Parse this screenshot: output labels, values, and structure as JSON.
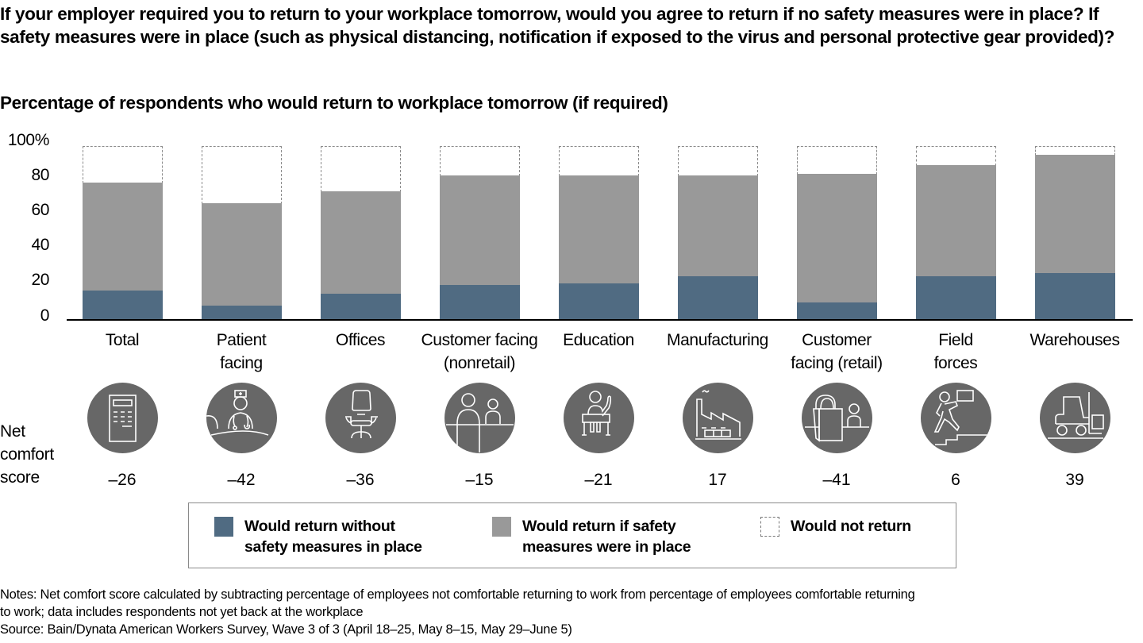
{
  "title": "If your employer required you to return to your workplace tomorrow, would you agree to return if no safety measures were in place? If safety measures were in place (such as physical distancing, notification if exposed to the virus and personal protective gear provided)?",
  "subtitle": "Percentage of respondents who would return to workplace tomorrow (if required)",
  "y_ticks": [
    "100%",
    "80",
    "60",
    "40",
    "20",
    "0"
  ],
  "net_comfort_label": [
    "Net",
    "comfort",
    "score"
  ],
  "categories": [
    {
      "line1": "Total",
      "line2": "",
      "icon": "calculator-icon",
      "score": "–26"
    },
    {
      "line1": "Patient",
      "line2": "facing",
      "icon": "nurse-patient-icon",
      "score": "–42"
    },
    {
      "line1": "Offices",
      "line2": "",
      "icon": "office-chair-icon",
      "score": "–36"
    },
    {
      "line1": "Customer facing",
      "line2": "(nonretail)",
      "icon": "service-counter-icon",
      "score": "–15"
    },
    {
      "line1": "Education",
      "line2": "",
      "icon": "student-desk-icon",
      "score": "–21"
    },
    {
      "line1": "Manufacturing",
      "line2": "",
      "icon": "factory-icon",
      "score": "17"
    },
    {
      "line1": "Customer",
      "line2": "facing (retail)",
      "icon": "shopping-bag-cashier-icon",
      "score": "–41"
    },
    {
      "line1": "Field",
      "line2": "forces",
      "icon": "worker-stairs-icon",
      "score": "6"
    },
    {
      "line1": "Warehouses",
      "line2": "",
      "icon": "forklift-icon",
      "score": "39"
    }
  ],
  "legend": {
    "without": {
      "line1": "Would return without",
      "line2": "safety measures in place",
      "color": "#506b82"
    },
    "safety": {
      "line1": "Would return if safety",
      "line2": "measures were in place",
      "color": "#999999"
    },
    "not_return": {
      "line1": "Would not return",
      "line2": "",
      "color": "#ffffff"
    }
  },
  "notes": {
    "line1": "Notes: Net comfort score calculated by subtracting percentage of employees not comfortable returning to work from percentage of employees comfortable returning",
    "line2": "to work; data includes respondents not yet back at the workplace",
    "line3": "Source: Bain/Dynata American Workers Survey, Wave 3 of 3 (April 18–25, May 8–15, May 29–June 5)"
  },
  "chart_data": {
    "type": "bar",
    "stacked": true,
    "title": "If your employer required you to return to your workplace tomorrow, would you agree to return if no safety measures were in place? If safety measures were in place (such as physical distancing, notification if exposed to the virus and personal protective gear provided)?",
    "subtitle": "Percentage of respondents who would return to workplace tomorrow (if required)",
    "xlabel": "",
    "ylabel": "",
    "ylim": [
      0,
      100
    ],
    "y_ticks": [
      0,
      20,
      40,
      60,
      80,
      100
    ],
    "grid": false,
    "legend_position": "bottom",
    "categories": [
      "Total",
      "Patient facing",
      "Offices",
      "Customer facing (nonretail)",
      "Education",
      "Manufacturing",
      "Customer facing (retail)",
      "Field forces",
      "Warehouses"
    ],
    "series": [
      {
        "name": "Would return without safety measures in place",
        "color": "#506b82",
        "values": [
          17,
          8,
          15,
          20,
          21,
          25,
          10,
          25,
          27
        ]
      },
      {
        "name": "Would return if safety measures were in place",
        "color": "#999999",
        "values": [
          62,
          59,
          59,
          63,
          62,
          58,
          74,
          64,
          68
        ]
      },
      {
        "name": "Would not return",
        "color": "#ffffff",
        "values": [
          21,
          33,
          26,
          17,
          17,
          17,
          16,
          11,
          5
        ]
      }
    ],
    "annotations": {
      "net_comfort_score": {
        "Total": -26,
        "Patient facing": -42,
        "Offices": -36,
        "Customer facing (nonretail)": -15,
        "Education": -21,
        "Manufacturing": 17,
        "Customer facing (retail)": -41,
        "Field forces": 6,
        "Warehouses": 39
      }
    }
  }
}
